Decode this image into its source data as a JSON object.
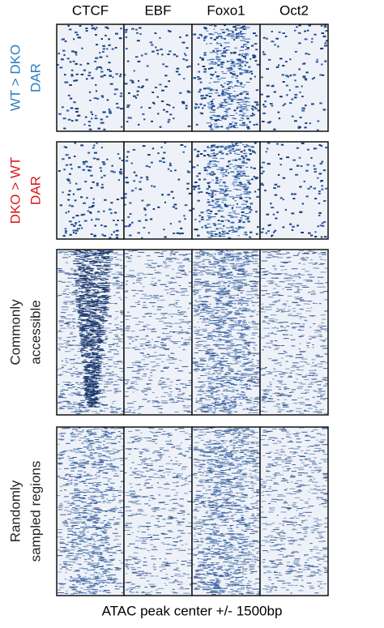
{
  "columns": [
    "CTCF",
    "EBF",
    "Foxo1",
    "Oct2"
  ],
  "rows": [
    {
      "label": [
        "WT > DKO",
        "DAR"
      ],
      "color": "#2a7fc0"
    },
    {
      "label": [
        "DKO > WT",
        "DAR"
      ],
      "color": "#d7191c"
    },
    {
      "label": [
        "Commonly",
        "accessible"
      ],
      "color": "#222222"
    },
    {
      "label": [
        "Randomly",
        "sampled regions"
      ],
      "color": "#222222"
    }
  ],
  "x_label": "ATAC peak center +/- 1500bp"
}
